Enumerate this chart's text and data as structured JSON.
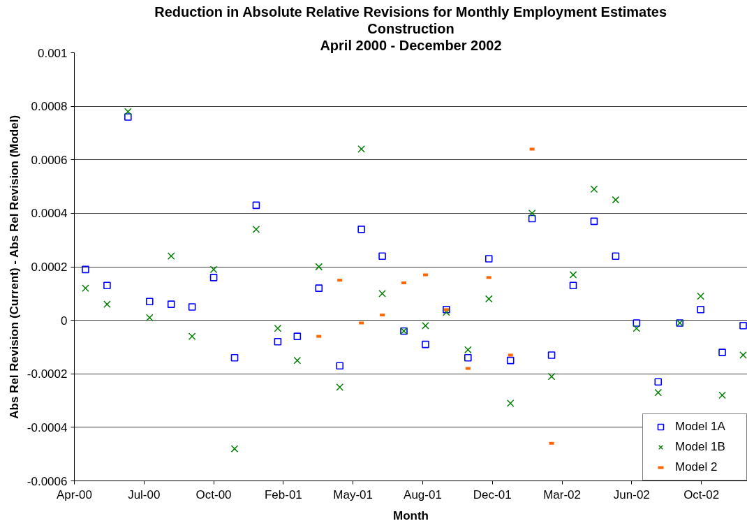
{
  "chart_data": {
    "type": "scatter",
    "title": "Reduction in Absolute Relative Revisions for Monthly Employment Estimates",
    "subtitle": "Construction",
    "annotations": [
      "April 2000 - December 2002"
    ],
    "xlabel": "Month",
    "ylabel": "Abs Rel Revision (Current) - Abs Rel Revision (Model)",
    "x": [
      "2000-04-30",
      "2000-05-31",
      "2000-06-30",
      "2000-07-31",
      "2000-08-31",
      "2000-09-30",
      "2000-10-31",
      "2000-11-30",
      "2000-12-31",
      "2001-01-31",
      "2001-02-28",
      "2001-03-31",
      "2001-04-30",
      "2001-05-31",
      "2001-06-30",
      "2001-07-31",
      "2001-08-31",
      "2001-09-30",
      "2001-10-31",
      "2001-11-30",
      "2001-12-31",
      "2002-01-31",
      "2002-02-28",
      "2002-03-31",
      "2002-04-30",
      "2002-05-31",
      "2002-06-30",
      "2002-07-31",
      "2002-08-31",
      "2002-09-30",
      "2002-10-31",
      "2002-11-30"
    ],
    "series": [
      {
        "name": "Model 1A",
        "color": "#0000ff",
        "marker": "square",
        "values": [
          0.00019,
          0.00013,
          0.00076,
          7e-05,
          6e-05,
          5e-05,
          0.00016,
          -0.00014,
          0.00043,
          -8e-05,
          -6e-05,
          0.00012,
          -0.00017,
          0.00034,
          0.00024,
          -4e-05,
          -9e-05,
          4e-05,
          -0.00014,
          0.00023,
          -0.00015,
          0.00038,
          -0.00013,
          0.00013,
          0.00037,
          0.00024,
          -1e-05,
          -0.00023,
          -1e-05,
          4e-05,
          -0.00012,
          -2e-05
        ]
      },
      {
        "name": "Model 1B",
        "color": "#008000",
        "marker": "cross",
        "values": [
          0.00012,
          6e-05,
          0.00078,
          1e-05,
          0.00024,
          -6e-05,
          0.00019,
          -0.00048,
          0.00034,
          -3e-05,
          -0.00015,
          0.0002,
          -0.00025,
          0.00064,
          0.0001,
          -4e-05,
          -2e-05,
          3e-05,
          -0.00011,
          8e-05,
          -0.00031,
          0.0004,
          -0.00021,
          0.00017,
          0.00049,
          0.00045,
          -3e-05,
          -0.00027,
          -1e-05,
          9e-05,
          -0.00028,
          -0.00013
        ]
      },
      {
        "name": "Model 2",
        "color": "#ff6600",
        "x": [
          "2001-03-31",
          "2001-04-30",
          "2001-05-31",
          "2001-06-30",
          "2001-07-31",
          "2001-08-31",
          "2001-09-30",
          "2001-10-31",
          "2001-11-30",
          "2001-12-31",
          "2002-01-31",
          "2002-02-28"
        ],
        "values": [
          -6e-05,
          0.00015,
          -1e-05,
          2e-05,
          0.00014,
          0.00017,
          4e-05,
          -0.00018,
          0.00016,
          -0.00013,
          0.00064,
          -0.00046
        ]
      }
    ],
    "xlim": [
      "2000-04-14",
      "2002-12-06"
    ],
    "xticks": [
      {
        "value": "2000-04-14",
        "label": "Apr-00"
      },
      {
        "value": "2000-07-23",
        "label": "Jul-00"
      },
      {
        "value": "2000-10-31",
        "label": "Oct-00"
      },
      {
        "value": "2001-02-08",
        "label": "Feb-01"
      },
      {
        "value": "2001-05-19",
        "label": "May-01"
      },
      {
        "value": "2001-08-27",
        "label": "Aug-01"
      },
      {
        "value": "2001-12-05",
        "label": "Dec-01"
      },
      {
        "value": "2002-03-15",
        "label": "Mar-02"
      },
      {
        "value": "2002-06-23",
        "label": "Jun-02"
      },
      {
        "value": "2002-10-01",
        "label": "Oct-02"
      }
    ],
    "ylim": [
      -0.0006,
      0.001
    ],
    "yticks": [
      -0.0006,
      -0.0004,
      -0.0002,
      0,
      0.0002,
      0.0004,
      0.0006,
      0.0008,
      0.001
    ],
    "grid": "y",
    "legend": "bottom right"
  }
}
